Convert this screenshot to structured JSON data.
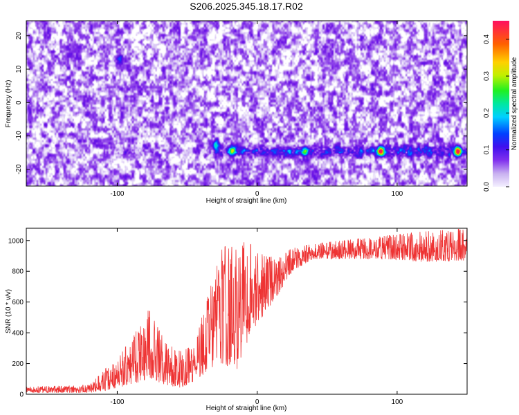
{
  "title": "S206.2025.345.18.17.R02",
  "chart_data": [
    {
      "type": "heatmap",
      "xlabel": "Height of straight line (km)",
      "ylabel": "Frequency (Hz)",
      "xlim": [
        -165,
        150
      ],
      "ylim": [
        -25,
        24.5
      ],
      "xticks": [
        -100,
        0,
        100
      ],
      "yticks": [
        -20,
        -10,
        0,
        10,
        20
      ],
      "colorbar": {
        "label": "Normalized spectral amplitude",
        "range": [
          0,
          0.45
        ],
        "ticks": [
          0.0,
          0.1,
          0.2,
          0.3,
          0.4
        ]
      },
      "features": {
        "noise_floor_amplitude": [
          0.0,
          0.12
        ],
        "band_center_hz": -14.5,
        "band_starts_km": -30,
        "hotspots": [
          {
            "x_km": -30,
            "y_hz": -12.5,
            "amp": 0.18
          },
          {
            "x_km": -18,
            "y_hz": -14.5,
            "amp": 0.22
          },
          {
            "x_km": 34,
            "y_hz": -14.5,
            "amp": 0.2
          },
          {
            "x_km": 88,
            "y_hz": -14.5,
            "amp": 0.42
          },
          {
            "x_km": 143,
            "y_hz": -14.5,
            "amp": 0.38
          },
          {
            "x_km": -99,
            "y_hz": 13,
            "amp": 0.1
          }
        ]
      }
    },
    {
      "type": "line",
      "xlabel": "Height of straight line (km)",
      "ylabel": "SNR (10 * v/v)",
      "xlim": [
        -165,
        150
      ],
      "ylim": [
        0,
        1080
      ],
      "xticks": [
        -100,
        0,
        100
      ],
      "yticks": [
        0,
        200,
        400,
        600,
        800,
        1000
      ],
      "color": "#ee3333",
      "envelope": [
        {
          "x": -165,
          "lo": 10,
          "hi": 50
        },
        {
          "x": -120,
          "lo": 10,
          "hi": 60
        },
        {
          "x": -110,
          "lo": 20,
          "hi": 150
        },
        {
          "x": -90,
          "lo": 60,
          "hi": 350
        },
        {
          "x": -78,
          "lo": 100,
          "hi": 560
        },
        {
          "x": -65,
          "lo": 60,
          "hi": 330
        },
        {
          "x": -55,
          "lo": 40,
          "hi": 280
        },
        {
          "x": -45,
          "lo": 80,
          "hi": 320
        },
        {
          "x": -35,
          "lo": 150,
          "hi": 650
        },
        {
          "x": -25,
          "lo": 200,
          "hi": 950
        },
        {
          "x": -15,
          "lo": 150,
          "hi": 1000
        },
        {
          "x": -5,
          "lo": 380,
          "hi": 980
        },
        {
          "x": 5,
          "lo": 520,
          "hi": 900
        },
        {
          "x": 15,
          "lo": 650,
          "hi": 890
        },
        {
          "x": 25,
          "lo": 800,
          "hi": 950
        },
        {
          "x": 40,
          "lo": 880,
          "hi": 980
        },
        {
          "x": 60,
          "lo": 880,
          "hi": 1000
        },
        {
          "x": 90,
          "lo": 880,
          "hi": 1030
        },
        {
          "x": 120,
          "lo": 860,
          "hi": 1060
        },
        {
          "x": 150,
          "lo": 870,
          "hi": 1080
        }
      ]
    }
  ]
}
